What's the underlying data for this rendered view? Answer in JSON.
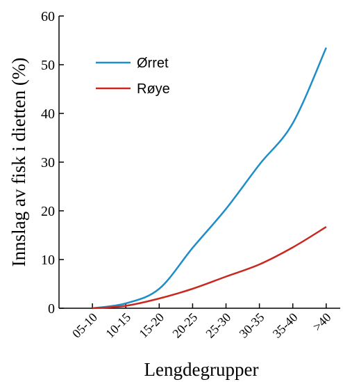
{
  "chart_data": {
    "type": "line",
    "x_label": "Lengdegrupper",
    "y_label": "Innslag av fisk i dietten (%)",
    "categories": [
      "05-10",
      "10-15",
      "15-20",
      "20-25",
      "25-30",
      "30-35",
      "35-40",
      ">40"
    ],
    "series": [
      {
        "name": "Ørret",
        "color": "#1f8dc9",
        "values": [
          0,
          1,
          4,
          12.4,
          20.4,
          29.5,
          38,
          53.5
        ]
      },
      {
        "name": "Røye",
        "color": "#c8281e",
        "values": [
          0,
          0.5,
          2,
          4,
          6.5,
          9,
          12.5,
          16.7
        ]
      }
    ],
    "ylim": [
      0,
      60
    ],
    "yticks": [
      0,
      10,
      20,
      30,
      40,
      50,
      60
    ],
    "legend": "upper left"
  }
}
